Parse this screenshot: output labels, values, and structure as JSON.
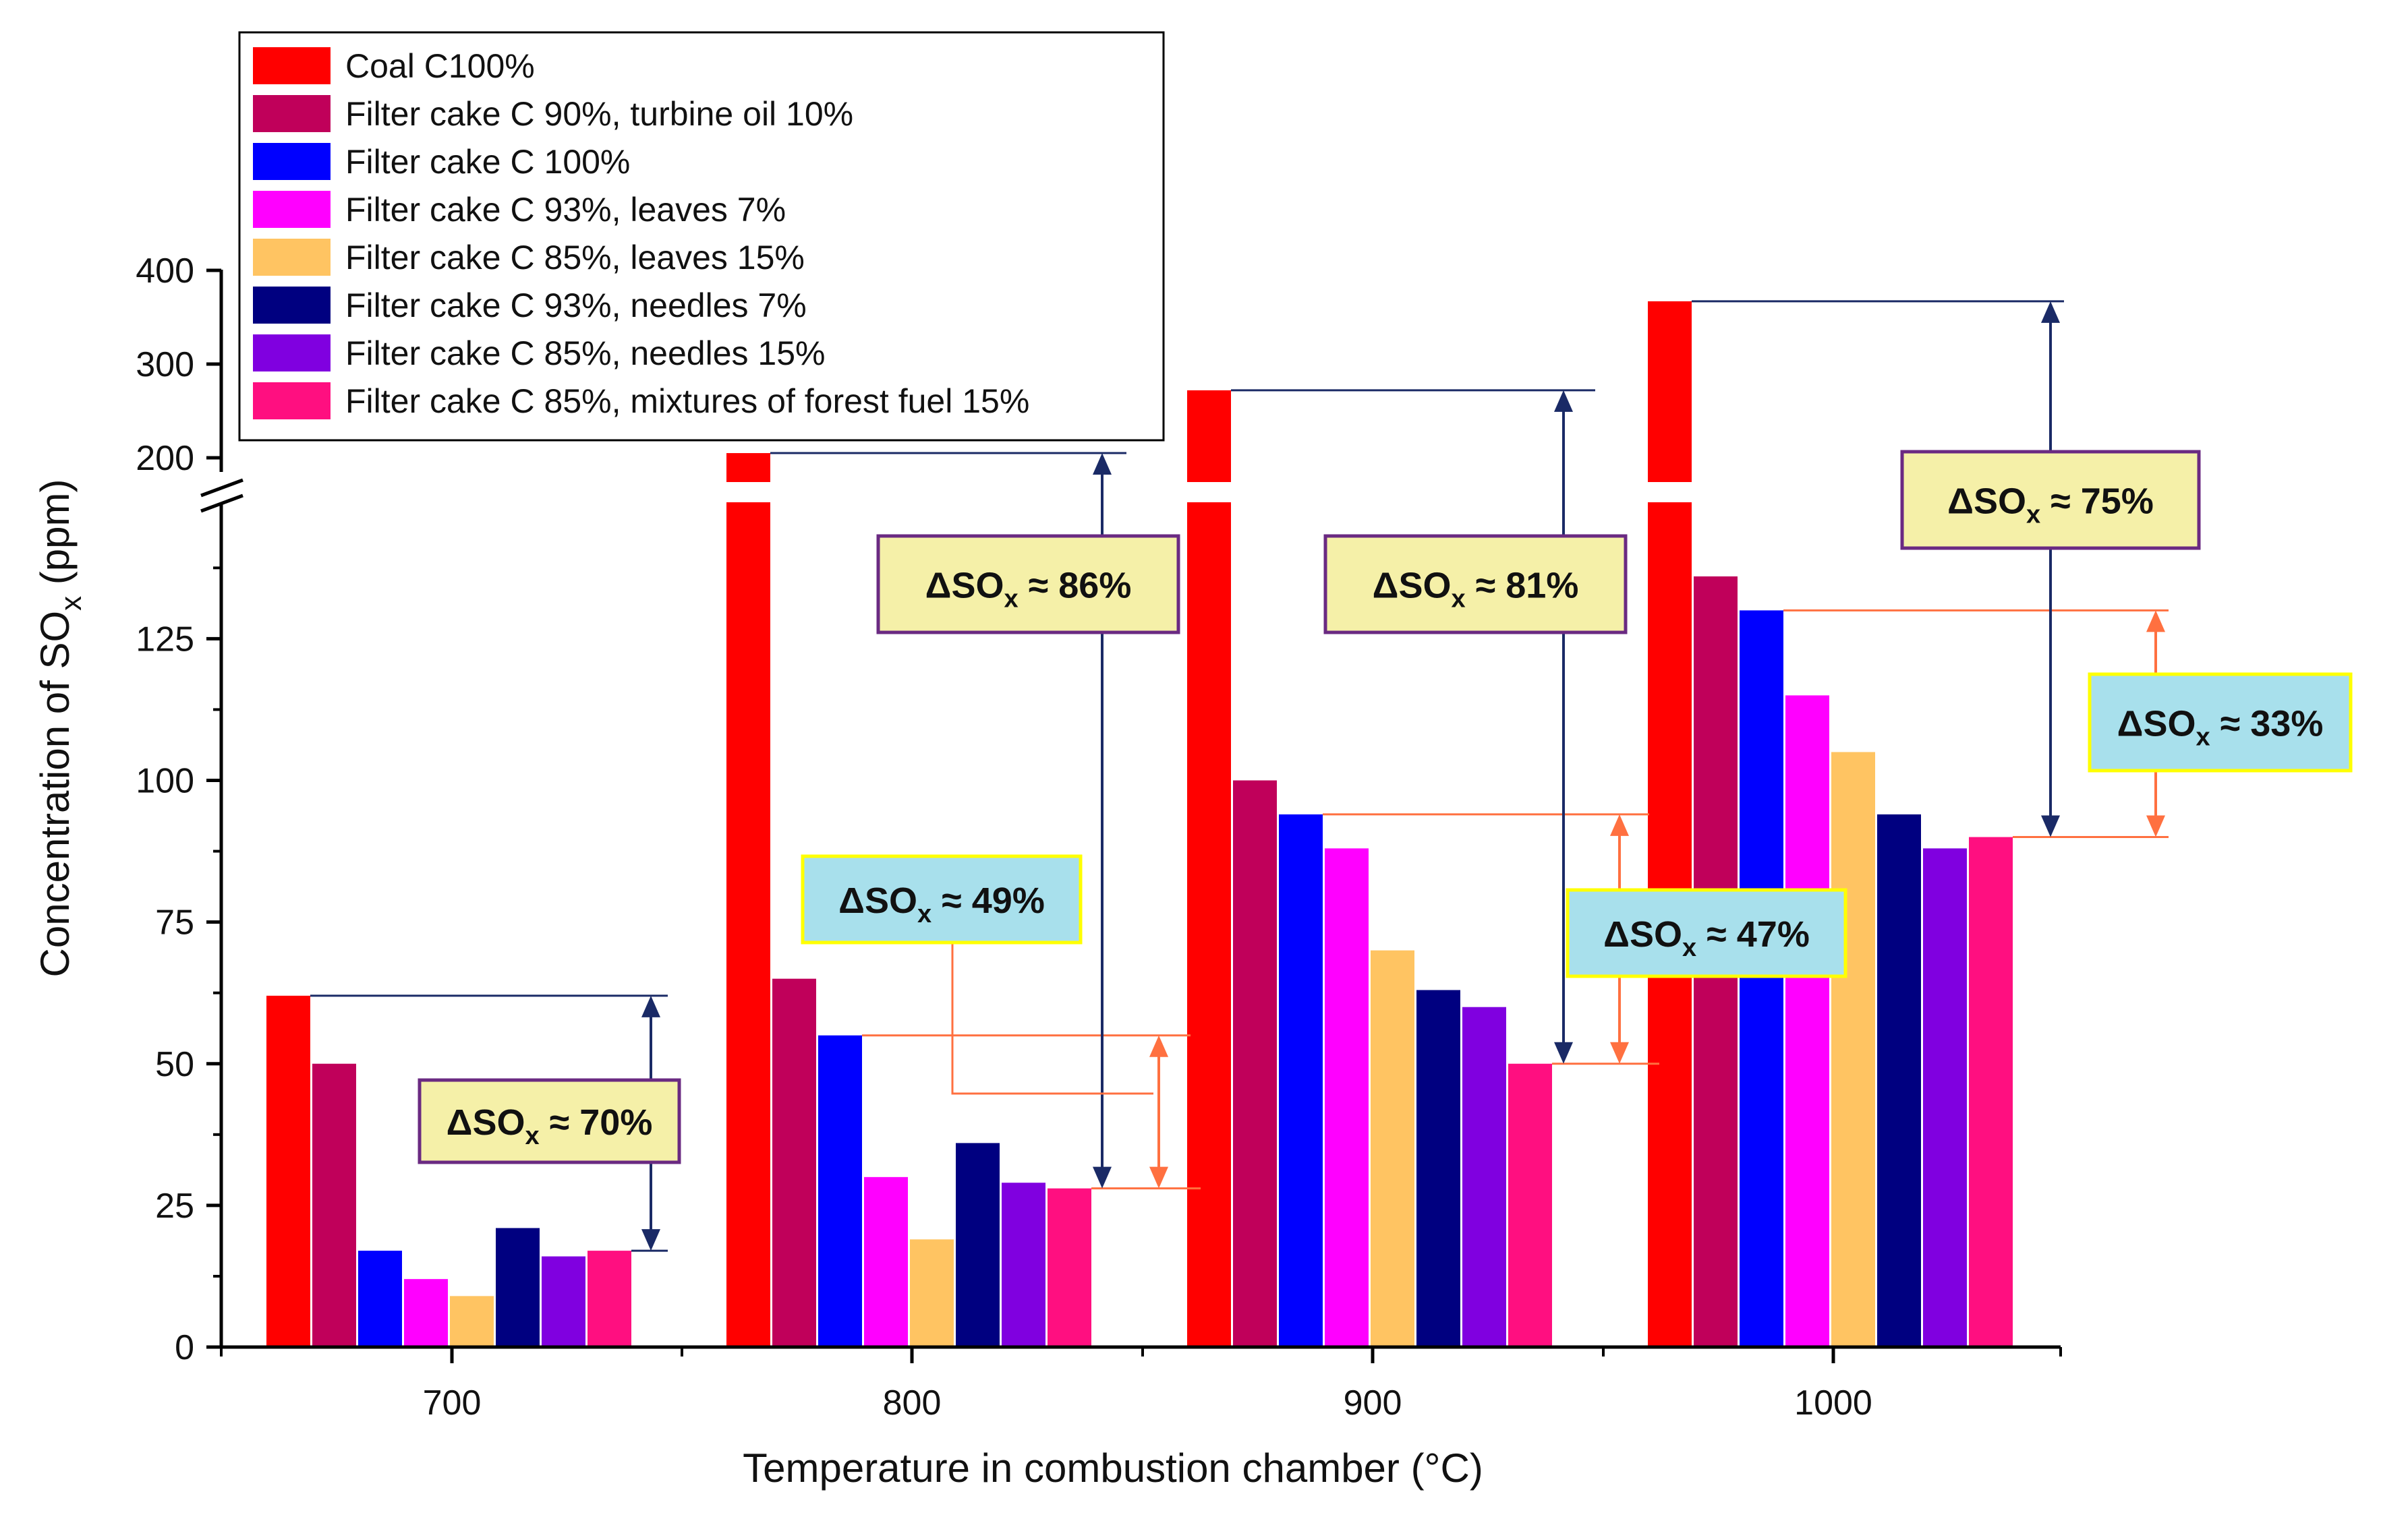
{
  "chart_data": {
    "type": "bar",
    "xlabel": "Temperature in combustion chamber  (°C)",
    "ylabel": "Concentration of SO",
    "ylabel_sub": "x",
    "ylabel_suffix": " (ppm)",
    "categories": [
      "700",
      "800",
      "900",
      "1000"
    ],
    "yticks_lower": [
      0,
      25,
      50,
      75,
      100,
      125
    ],
    "yticks_upper": [
      200,
      300,
      400
    ],
    "axis_break": [
      140,
      180
    ],
    "ylim": [
      0,
      400
    ],
    "series": [
      {
        "name": "Coal C100%",
        "color": "#ff0000",
        "values": [
          62,
          205,
          272,
          367
        ]
      },
      {
        "name": "Filter cake C 90%, turbine oil 10%",
        "color": "#c0005a",
        "values": [
          50,
          65,
          100,
          136
        ]
      },
      {
        "name": "Filter cake C 100%",
        "color": "#0000ff",
        "values": [
          17,
          55,
          94,
          130
        ]
      },
      {
        "name": "Filter cake C 93%, leaves 7%",
        "color": "#ff00ff",
        "values": [
          12,
          30,
          88,
          115
        ]
      },
      {
        "name": "Filter cake C 85%, leaves 15%",
        "color": "#ffc462",
        "values": [
          9,
          19,
          70,
          105
        ]
      },
      {
        "name": "Filter cake C 93%, needles 7%",
        "color": "#000080",
        "values": [
          21,
          36,
          63,
          94
        ]
      },
      {
        "name": "Filter cake C 85%, needles 15%",
        "color": "#8000e0",
        "values": [
          16,
          29,
          60,
          88
        ]
      },
      {
        "name": "Filter cake C 85%, mixtures of  forest fuel 15%",
        "color": "#ff0f80",
        "values": [
          17,
          28,
          50,
          90
        ]
      }
    ],
    "annotations": [
      {
        "label": "ΔSOx ≈ 70%",
        "style": "yellow"
      },
      {
        "label": "ΔSOx ≈ 86%",
        "style": "yellow"
      },
      {
        "label": "ΔSOx ≈ 49%",
        "style": "cyan"
      },
      {
        "label": "ΔSOx ≈ 81%",
        "style": "yellow"
      },
      {
        "label": "ΔSOx ≈ 47%",
        "style": "cyan"
      },
      {
        "label": "ΔSOx ≈ 75%",
        "style": "yellow"
      },
      {
        "label": "ΔSOx ≈ 33%",
        "style": "cyan"
      }
    ]
  }
}
